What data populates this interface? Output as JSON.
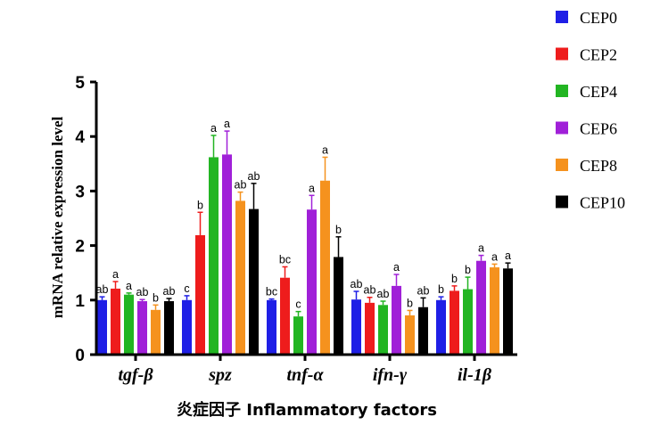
{
  "chart_data": {
    "type": "bar",
    "title": "",
    "xlabel": "炎症因子 Inflammatory factors",
    "ylabel": "mRNA relative expression level",
    "ylim": [
      0,
      5
    ],
    "yticks": [
      0,
      1,
      2,
      3,
      4,
      5
    ],
    "grid": false,
    "legend_position": "top-right",
    "categories": [
      "tgf-β",
      "spz",
      "tnf-α",
      "ifn-γ",
      "il-1β"
    ],
    "series": [
      {
        "name": "CEP0",
        "color": "#1f1fe6",
        "values": [
          1.0,
          1.0,
          1.0,
          1.01,
          1.0
        ],
        "errors": [
          0.06,
          0.08,
          0.02,
          0.15,
          0.06
        ],
        "labels": [
          "ab",
          "c",
          "bc",
          "ab",
          "b"
        ]
      },
      {
        "name": "CEP2",
        "color": "#ee1c1c",
        "values": [
          1.21,
          2.19,
          1.41,
          0.95,
          1.17
        ],
        "errors": [
          0.13,
          0.42,
          0.2,
          0.1,
          0.09
        ],
        "labels": [
          "a",
          "b",
          "bc",
          "ab",
          "b"
        ]
      },
      {
        "name": "CEP4",
        "color": "#22b522",
        "values": [
          1.1,
          3.62,
          0.7,
          0.91,
          1.2
        ],
        "errors": [
          0.03,
          0.4,
          0.09,
          0.07,
          0.22
        ],
        "labels": [
          "a",
          "a",
          "c",
          "ab",
          "b"
        ]
      },
      {
        "name": "CEP6",
        "color": "#a020d8",
        "values": [
          0.98,
          3.67,
          2.66,
          1.26,
          1.72
        ],
        "errors": [
          0.03,
          0.43,
          0.26,
          0.21,
          0.1
        ],
        "labels": [
          "ab",
          "a",
          "a",
          "a",
          "a"
        ]
      },
      {
        "name": "CEP8",
        "color": "#f5921e",
        "values": [
          0.82,
          2.82,
          3.19,
          0.72,
          1.6
        ],
        "errors": [
          0.09,
          0.16,
          0.43,
          0.09,
          0.06
        ],
        "labels": [
          "b",
          "ab",
          "a",
          "b",
          "a"
        ]
      },
      {
        "name": "CEP10",
        "color": "#000000",
        "values": [
          0.98,
          2.67,
          1.79,
          0.87,
          1.58
        ],
        "errors": [
          0.05,
          0.47,
          0.37,
          0.17,
          0.1
        ],
        "labels": [
          "ab",
          "ab",
          "b",
          "ab",
          "a"
        ]
      }
    ]
  }
}
